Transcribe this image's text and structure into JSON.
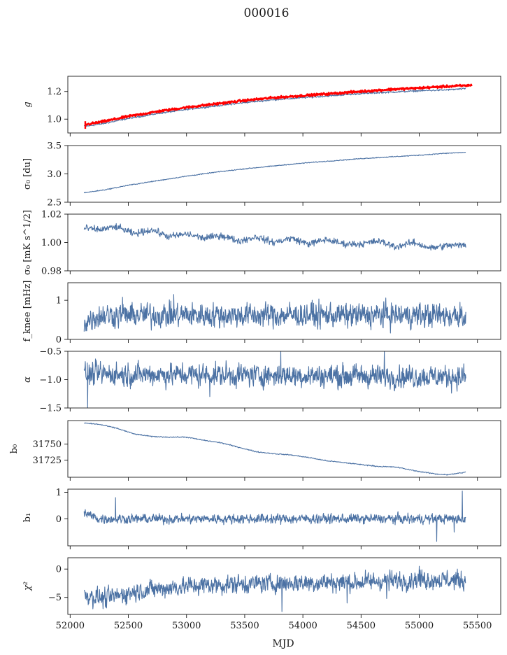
{
  "title": "000016",
  "colors": {
    "series": "#4c72a4",
    "fit": "#ff0000",
    "axis": "#1a1a1a"
  },
  "chart_data": {
    "type": "line",
    "title": "000016",
    "xlabel": "MJD",
    "xlim": [
      51980,
      55700
    ],
    "x_range": [
      52120,
      55400
    ],
    "xticks": [
      52000,
      52500,
      53000,
      53500,
      54000,
      54500,
      55000,
      55500
    ],
    "xtick_labels": [
      "52000",
      "52500",
      "53000",
      "53500",
      "54000",
      "54500",
      "55000",
      "55500"
    ],
    "panels": [
      {
        "id": "g",
        "ylabel": "g",
        "ylim": [
          0.9,
          1.31
        ],
        "yticks": [
          1.0,
          1.2
        ],
        "ytick_labels": [
          "1.0",
          "1.2"
        ],
        "series": [
          {
            "kind": "smooth",
            "points": [
              [
                52150,
                0.95
              ],
              [
                52300,
                0.97
              ],
              [
                52500,
                1.005
              ],
              [
                52750,
                1.04
              ],
              [
                53000,
                1.07
              ],
              [
                53250,
                1.095
              ],
              [
                53500,
                1.12
              ],
              [
                53750,
                1.14
              ],
              [
                54000,
                1.155
              ],
              [
                54250,
                1.17
              ],
              [
                54500,
                1.185
              ],
              [
                54750,
                1.195
              ],
              [
                55000,
                1.205
              ],
              [
                55200,
                1.21
              ],
              [
                55400,
                1.22
              ]
            ],
            "noise": 0.003
          },
          {
            "kind": "fit",
            "points": [
              [
                52130,
                0.96
              ],
              [
                52300,
                0.985
              ],
              [
                52500,
                1.02
              ],
              [
                52750,
                1.055
              ],
              [
                53000,
                1.085
              ],
              [
                53250,
                1.11
              ],
              [
                53500,
                1.135
              ],
              [
                53750,
                1.155
              ],
              [
                54000,
                1.17
              ],
              [
                54250,
                1.185
              ],
              [
                54500,
                1.2
              ],
              [
                54750,
                1.215
              ],
              [
                55000,
                1.225
              ],
              [
                55200,
                1.235
              ],
              [
                55450,
                1.245
              ]
            ],
            "noise": 0.004
          }
        ]
      },
      {
        "id": "sigma0-du",
        "ylabel": "σ₀ [du]",
        "ylim": [
          2.5,
          3.5
        ],
        "yticks": [
          2.5,
          3.0,
          3.5
        ],
        "ytick_labels": [
          "2.5",
          "3.0",
          "3.5"
        ],
        "series": [
          {
            "kind": "smooth",
            "points": [
              [
                52130,
                2.67
              ],
              [
                52300,
                2.72
              ],
              [
                52500,
                2.8
              ],
              [
                52750,
                2.88
              ],
              [
                53000,
                2.96
              ],
              [
                53250,
                3.03
              ],
              [
                53500,
                3.09
              ],
              [
                53750,
                3.14
              ],
              [
                54000,
                3.19
              ],
              [
                54250,
                3.23
              ],
              [
                54500,
                3.27
              ],
              [
                54750,
                3.3
              ],
              [
                55000,
                3.33
              ],
              [
                55200,
                3.36
              ],
              [
                55400,
                3.38
              ]
            ],
            "noise": 0.004
          }
        ]
      },
      {
        "id": "sigma0-mk",
        "ylabel": "σ₀ [mK s^1/2]",
        "ylim": [
          0.98,
          1.02
        ],
        "yticks": [
          0.98,
          1.0,
          1.02
        ],
        "ytick_labels": [
          "0.98",
          "1.00",
          "1.02"
        ],
        "series": [
          {
            "kind": "smooth",
            "points": [
              [
                52130,
                1.01
              ],
              [
                52250,
                1.009
              ],
              [
                52400,
                1.011
              ],
              [
                52550,
                1.006
              ],
              [
                52700,
                1.009
              ],
              [
                52850,
                1.004
              ],
              [
                53000,
                1.006
              ],
              [
                53150,
                1.003
              ],
              [
                53300,
                1.005
              ],
              [
                53450,
                1.001
              ],
              [
                53600,
                1.004
              ],
              [
                53750,
                1.0
              ],
              [
                53900,
                1.003
              ],
              [
                54050,
                0.999
              ],
              [
                54200,
                1.002
              ],
              [
                54350,
                0.999
              ],
              [
                54500,
                0.999
              ],
              [
                54650,
                1.001
              ],
              [
                54800,
                0.997
              ],
              [
                54950,
                1.0
              ],
              [
                55100,
                0.996
              ],
              [
                55250,
                0.998
              ],
              [
                55400,
                0.998
              ]
            ],
            "noise": 0.0012
          }
        ]
      },
      {
        "id": "fknee",
        "ylabel": "f_knee [mHz]",
        "ylim": [
          0,
          1.45
        ],
        "yticks": [
          0,
          1
        ],
        "ytick_labels": [
          "0",
          "1"
        ],
        "series": [
          {
            "kind": "noisy",
            "mean": 0.62,
            "noise": 0.14,
            "points": [
              [
                52130,
                0.45
              ],
              [
                52250,
                0.62
              ],
              [
                55400,
                0.62
              ]
            ],
            "spikes": [
              [
                52890,
                1.15
              ],
              [
                52450,
                1.08
              ],
              [
                55350,
                0.95
              ]
            ]
          }
        ]
      },
      {
        "id": "alpha",
        "ylabel": "α",
        "ylim": [
          -1.5,
          -0.5
        ],
        "yticks": [
          -1.5,
          -1.0,
          -0.5
        ],
        "ytick_labels": [
          "−1.5",
          "−1.0",
          "−0.5"
        ],
        "series": [
          {
            "kind": "noisy",
            "mean": -0.95,
            "noise": 0.09,
            "points": [
              [
                52130,
                -0.9
              ],
              [
                55400,
                -0.95
              ]
            ],
            "spikes": [
              [
                52150,
                -1.5
              ],
              [
                53810,
                -0.5
              ],
              [
                54700,
                -0.5
              ],
              [
                53200,
                -1.3
              ]
            ]
          }
        ]
      },
      {
        "id": "b0",
        "ylabel": "b₀",
        "ylim": [
          31698,
          31787
        ],
        "yticks": [
          31725,
          31750
        ],
        "ytick_labels": [
          "31725",
          "31750"
        ],
        "series": [
          {
            "kind": "smooth",
            "points": [
              [
                52130,
                31783
              ],
              [
                52250,
                31781
              ],
              [
                52400,
                31775
              ],
              [
                52550,
                31766
              ],
              [
                52700,
                31762
              ],
              [
                52850,
                31761
              ],
              [
                53000,
                31761
              ],
              [
                53150,
                31756
              ],
              [
                53300,
                31752
              ],
              [
                53450,
                31745
              ],
              [
                53600,
                31738
              ],
              [
                53750,
                31735
              ],
              [
                53900,
                31733
              ],
              [
                54050,
                31729
              ],
              [
                54200,
                31724
              ],
              [
                54350,
                31721
              ],
              [
                54500,
                31718
              ],
              [
                54650,
                31715
              ],
              [
                54800,
                31714
              ],
              [
                55000,
                31707
              ],
              [
                55150,
                31703
              ],
              [
                55250,
                31702
              ],
              [
                55400,
                31706
              ]
            ],
            "noise": 0.4
          }
        ]
      },
      {
        "id": "b1",
        "ylabel": "b₁",
        "ylim": [
          -1.02,
          1.12
        ],
        "yticks": [
          0,
          1
        ],
        "ytick_labels": [
          "0",
          "1"
        ],
        "series": [
          {
            "kind": "noisy",
            "mean": 0.0,
            "noise": 0.08,
            "points": [
              [
                52130,
                0.2
              ],
              [
                52250,
                0.0
              ],
              [
                55400,
                0.0
              ]
            ],
            "spikes": [
              [
                52390,
                0.8
              ],
              [
                55370,
                1.05
              ],
              [
                55300,
                -0.5
              ],
              [
                55150,
                -0.85
              ],
              [
                52130,
                0.35
              ]
            ]
          }
        ]
      },
      {
        "id": "chi2",
        "ylabel": "χ²",
        "ylim": [
          -8.0,
          2.0
        ],
        "yticks": [
          -5,
          0
        ],
        "ytick_labels": [
          "−5",
          "0"
        ],
        "series": [
          {
            "kind": "noisy",
            "mean": -2.5,
            "noise": 0.75,
            "points": [
              [
                52130,
                -4.6
              ],
              [
                52300,
                -5.2
              ],
              [
                52600,
                -3.8
              ],
              [
                53000,
                -3.0
              ],
              [
                53500,
                -2.6
              ],
              [
                54000,
                -2.4
              ],
              [
                54500,
                -2.3
              ],
              [
                55000,
                -1.8
              ],
              [
                55400,
                -2.0
              ]
            ],
            "spikes": [
              [
                53820,
                -7.5
              ],
              [
                54380,
                -6.0
              ],
              [
                54720,
                -5.2
              ],
              [
                55000,
                0.5
              ]
            ]
          }
        ]
      }
    ]
  }
}
